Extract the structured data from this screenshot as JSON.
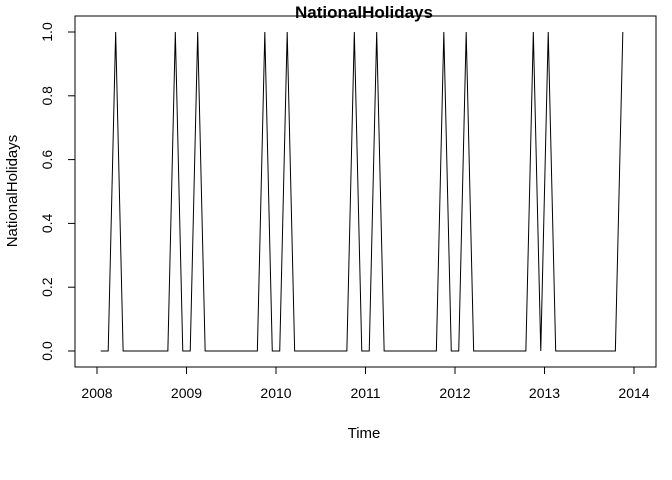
{
  "chart_data": {
    "type": "line",
    "title": "NationalHolidays",
    "xlabel": "Time",
    "ylabel": "NationalHolidays",
    "xlim": [
      2008,
      2014
    ],
    "ylim": [
      0,
      1
    ],
    "x_ticks": [
      2008,
      2009,
      2010,
      2011,
      2012,
      2013,
      2014
    ],
    "y_ticks": [
      0.0,
      0.2,
      0.4,
      0.6,
      0.8,
      1.0
    ],
    "y_tick_labels": [
      "0.0",
      "0.2",
      "0.4",
      "0.6",
      "0.8",
      "1.0"
    ],
    "grid": false,
    "line_color": "#000000",
    "series": [
      {
        "values": [
          0,
          0,
          1,
          0,
          0,
          0,
          0,
          0,
          0,
          0,
          1,
          0,
          0,
          1,
          0,
          0,
          0,
          0,
          0,
          0,
          0,
          0,
          1,
          0,
          0,
          1,
          0,
          0,
          0,
          0,
          0,
          0,
          0,
          0,
          1,
          0,
          0,
          1,
          0,
          0,
          0,
          0,
          0,
          0,
          0,
          0,
          1,
          0,
          0,
          1,
          0,
          0,
          0,
          0,
          0,
          0,
          0,
          0,
          1,
          0,
          1,
          0,
          0,
          0,
          0,
          0,
          0,
          0,
          0,
          0,
          1
        ],
        "start": 2008.0417,
        "frequency": 12
      }
    ]
  }
}
